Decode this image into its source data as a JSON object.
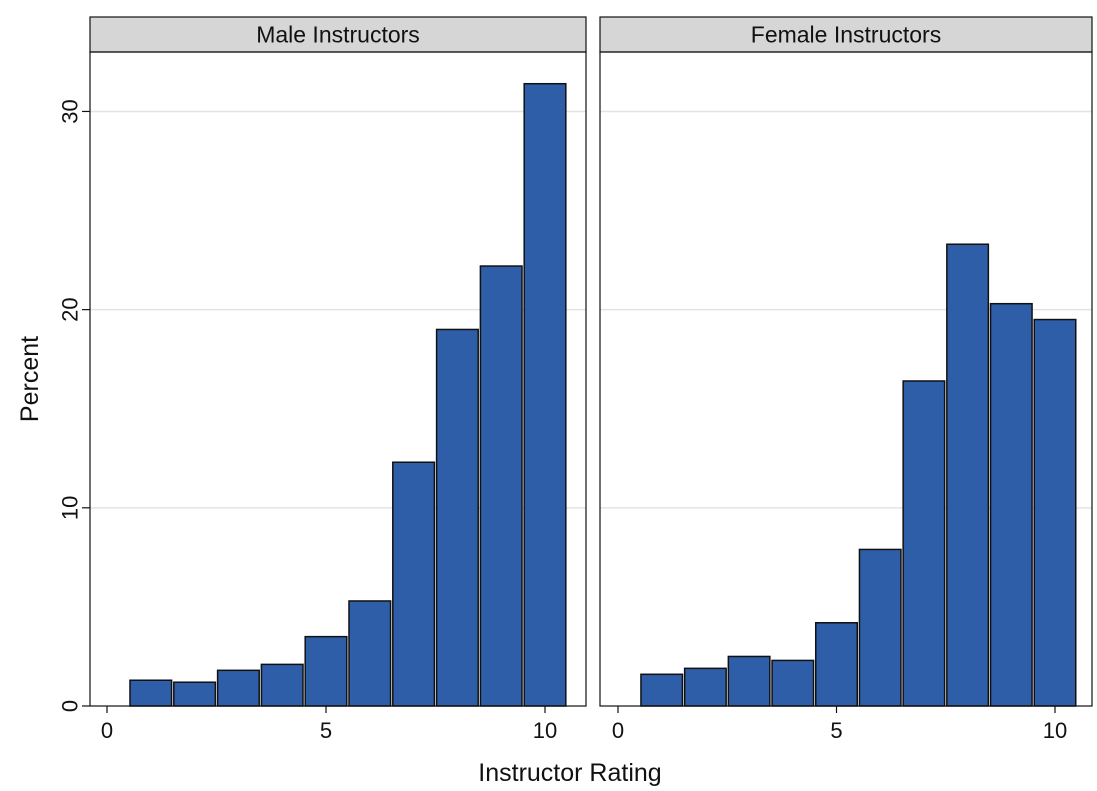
{
  "chart_data": {
    "type": "bar",
    "xlabel": "Instructor Rating",
    "ylabel": "Percent",
    "xlim": [
      -0.5,
      11
    ],
    "ylim": [
      0,
      33
    ],
    "x_ticks": [
      "0",
      "5",
      "10"
    ],
    "y_ticks": [
      "0",
      "10",
      "20",
      "30"
    ],
    "grid": true,
    "colors": {
      "bar_fill": "#2f5ea8",
      "bar_stroke": "#111111",
      "strip_fill": "#d6d6d6",
      "grid": "#e3e3e3"
    },
    "bins": [
      1,
      2,
      3,
      4,
      5,
      6,
      7,
      8,
      9,
      10
    ],
    "panels": [
      {
        "name": "Male Instructors",
        "values": [
          1.3,
          1.2,
          1.8,
          2.1,
          3.5,
          5.3,
          12.3,
          19.0,
          22.2,
          31.4
        ]
      },
      {
        "name": "Female Instructors",
        "values": [
          1.6,
          1.9,
          2.5,
          2.3,
          4.2,
          7.9,
          16.4,
          23.3,
          20.3,
          19.5
        ]
      }
    ]
  }
}
